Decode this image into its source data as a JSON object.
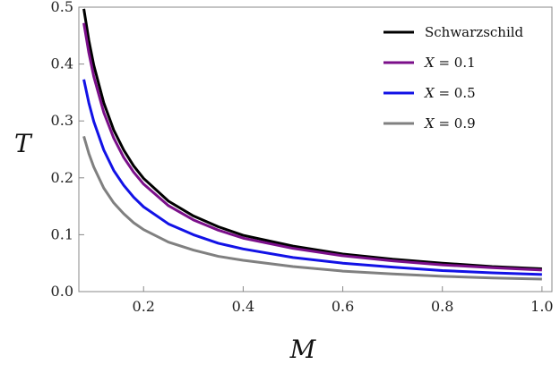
{
  "chart_data": {
    "type": "line",
    "xlabel": "M",
    "ylabel": "T",
    "xlim": [
      0.07,
      1.02
    ],
    "ylim": [
      0.0,
      0.5
    ],
    "x_ticks": [
      0.2,
      0.4,
      0.6,
      0.8,
      1.0
    ],
    "x_tick_labels": [
      "0.2",
      "0.4",
      "0.6",
      "0.8",
      "1.0"
    ],
    "y_ticks": [
      0.0,
      0.1,
      0.2,
      0.3,
      0.4,
      0.5
    ],
    "y_tick_labels": [
      "0.0",
      "0.1",
      "0.2",
      "0.3",
      "0.4",
      "0.5"
    ],
    "grid": false,
    "legend_position": "top-right",
    "x": [
      0.08,
      0.09,
      0.1,
      0.12,
      0.14,
      0.16,
      0.18,
      0.2,
      0.25,
      0.3,
      0.35,
      0.4,
      0.5,
      0.6,
      0.7,
      0.8,
      0.9,
      1.0
    ],
    "series": [
      {
        "name": "Schwarzschild",
        "color": "#000000",
        "values": [
          0.497,
          0.442,
          0.398,
          0.332,
          0.284,
          0.249,
          0.221,
          0.199,
          0.159,
          0.133,
          0.114,
          0.099,
          0.08,
          0.066,
          0.057,
          0.05,
          0.044,
          0.04
        ]
      },
      {
        "name": "X = 0.1",
        "label_var": "X",
        "label_rest": " = 0.1",
        "color": "#7b0f8a",
        "values": [
          0.472,
          0.42,
          0.378,
          0.315,
          0.27,
          0.236,
          0.21,
          0.189,
          0.151,
          0.126,
          0.108,
          0.094,
          0.076,
          0.063,
          0.054,
          0.047,
          0.042,
          0.038
        ]
      },
      {
        "name": "X = 0.5",
        "label_var": "X",
        "label_rest": " = 0.5",
        "color": "#1212e6",
        "values": [
          0.373,
          0.332,
          0.299,
          0.249,
          0.213,
          0.187,
          0.166,
          0.149,
          0.119,
          0.1,
          0.085,
          0.075,
          0.06,
          0.05,
          0.043,
          0.037,
          0.033,
          0.03
        ]
      },
      {
        "name": "X = 0.9",
        "label_var": "X",
        "label_rest": " = 0.9",
        "color": "#808080",
        "values": [
          0.273,
          0.243,
          0.219,
          0.182,
          0.156,
          0.137,
          0.121,
          0.109,
          0.087,
          0.073,
          0.062,
          0.055,
          0.044,
          0.036,
          0.031,
          0.027,
          0.024,
          0.022
        ]
      }
    ]
  }
}
